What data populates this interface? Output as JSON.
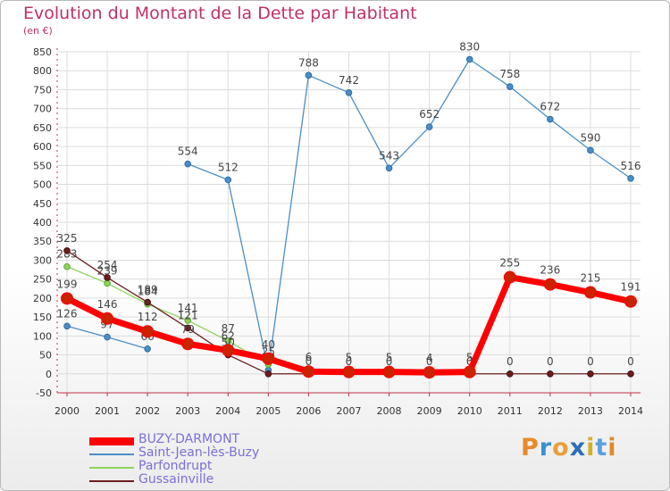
{
  "chart_data": {
    "type": "line",
    "title": "Evolution du Montant de la Dette par Habitant",
    "ylabel": "(en €)",
    "xlabel": "",
    "x": [
      "2000",
      "2001",
      "2002",
      "2003",
      "2004",
      "2005",
      "2006",
      "2007",
      "2008",
      "2009",
      "2010",
      "2011",
      "2012",
      "2013",
      "2014"
    ],
    "yticks": [
      -50,
      0,
      50,
      100,
      150,
      200,
      250,
      300,
      350,
      400,
      450,
      500,
      550,
      600,
      650,
      700,
      750,
      800,
      850
    ],
    "ylim": [
      -50,
      850
    ],
    "grid": true,
    "legend_position": "bottom-left",
    "series": [
      {
        "name": "BUZY-DARMONT",
        "color": "#ff0000",
        "values": [
          199,
          146,
          112,
          79,
          62,
          40,
          6,
          5,
          5,
          4,
          5,
          255,
          236,
          215,
          191
        ],
        "labels": [
          "199",
          "146",
          "112",
          "79",
          "62",
          "40",
          "6",
          "5",
          "5",
          "4",
          "5",
          "255",
          "236",
          "215",
          "191"
        ]
      },
      {
        "name": "Saint-Jean-lès-Buzy",
        "color": "#4a8ec8",
        "values": [
          126,
          97,
          66,
          554,
          512,
          10,
          788,
          742,
          543,
          652,
          830,
          758,
          672,
          590,
          516
        ],
        "labels": [
          "126",
          "97",
          "66",
          "554",
          "512",
          "10",
          "788",
          "742",
          "543",
          "652",
          "830",
          "758",
          "672",
          "590",
          "516"
        ],
        "breaks_after": [
          2
        ]
      },
      {
        "name": "Parfondrupt",
        "color": "#8cd45a",
        "values": [
          283,
          239,
          184,
          141,
          87,
          25,
          null,
          null,
          null,
          null,
          null,
          null,
          null,
          null,
          null
        ],
        "labels": [
          "283",
          "239",
          "184",
          "141",
          "87",
          "25",
          "",
          "",
          "",
          "",
          "",
          "",
          "",
          "",
          ""
        ]
      },
      {
        "name": "Gussainville",
        "color": "#6b1e1e",
        "values": [
          325,
          254,
          189,
          121,
          50,
          0,
          0,
          0,
          0,
          0,
          0,
          0,
          0,
          0,
          0
        ],
        "labels": [
          "325",
          "254",
          "189",
          "121",
          "50",
          "0",
          "0",
          "0",
          "0",
          "0",
          "0",
          "0",
          "0",
          "0",
          "0"
        ]
      }
    ]
  },
  "branding": {
    "logo_letters": [
      "P",
      "r",
      "o",
      "x",
      "i",
      "t",
      "i"
    ],
    "logo_colors": [
      "#e88a2a",
      "#3b8fd4",
      "#e8a03a",
      "#2b6fb8",
      "#d3b02a",
      "#5aa0dd",
      "#e08a2a"
    ]
  }
}
